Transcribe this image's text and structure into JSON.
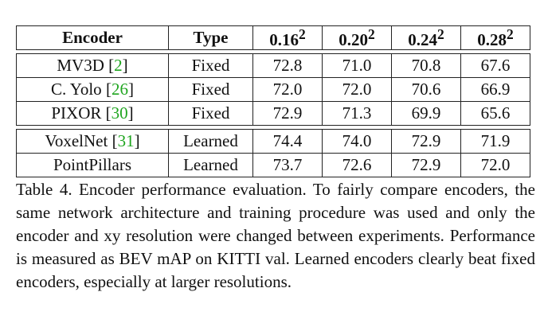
{
  "table": {
    "headers": [
      "Encoder",
      "Type",
      "0.16",
      "0.20",
      "0.24",
      "0.28"
    ],
    "header_exponent": "2",
    "groups": [
      [
        {
          "encoder": "MV3D",
          "cite": "2",
          "type": "Fixed",
          "values": [
            "72.8",
            "71.0",
            "70.8",
            "67.6"
          ],
          "bold": [
            false,
            false,
            false,
            false
          ]
        },
        {
          "encoder": "C. Yolo",
          "cite": "26",
          "type": "Fixed",
          "values": [
            "72.0",
            "72.0",
            "70.6",
            "66.9"
          ],
          "bold": [
            false,
            false,
            false,
            false
          ]
        },
        {
          "encoder": "PIXOR",
          "cite": "30",
          "type": "Fixed",
          "values": [
            "72.9",
            "71.3",
            "69.9",
            "65.6"
          ],
          "bold": [
            false,
            false,
            false,
            false
          ]
        }
      ],
      [
        {
          "encoder": "VoxelNet",
          "cite": "31",
          "type": "Learned",
          "values": [
            "74.4",
            "74.0",
            "72.9",
            "71.9"
          ],
          "bold": [
            true,
            true,
            true,
            false
          ]
        },
        {
          "encoder": "PointPillars",
          "cite": "",
          "type": "Learned",
          "values": [
            "73.7",
            "72.6",
            "72.9",
            "72.0"
          ],
          "bold": [
            false,
            false,
            true,
            true
          ]
        }
      ]
    ]
  },
  "caption": "Table 4. Encoder performance evaluation. To fairly compare encoders, the same network architecture and training procedure was used and only the encoder and xy resolution were changed between experiments. Performance is measured as BEV mAP on KITTI val. Learned encoders clearly beat fixed encoders, especially at larger resolutions."
}
